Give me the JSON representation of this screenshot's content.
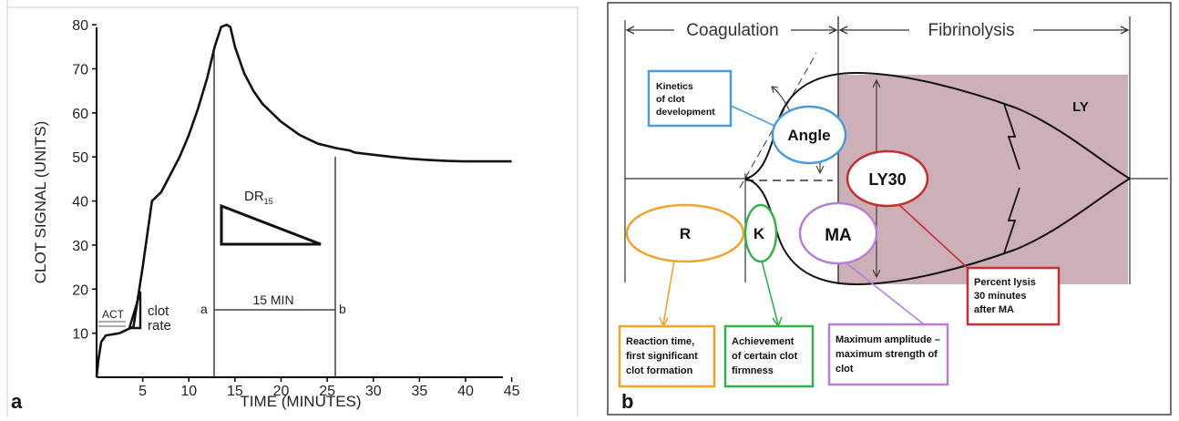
{
  "panel_a": {
    "letter": "a",
    "ylabel": "CLOT SIGNAL (UNITS)",
    "xlabel": "TIME (MINUTES)",
    "annotations": {
      "act": "ACT",
      "clot": "clot",
      "rate": "rate",
      "dr": "DR",
      "dr_sub": "15",
      "marker_a": "a",
      "marker_b": "b",
      "interval": "15 MIN"
    }
  },
  "panel_b": {
    "letter": "b",
    "phase_coagulation": "Coagulation",
    "phase_fibrinolysis": "Fibrinolysis",
    "labels": {
      "r": "R",
      "k": "K",
      "angle": "Angle",
      "ma": "MA",
      "ly30": "LY30",
      "ly": "LY"
    },
    "boxes": {
      "kinetics": [
        "Kinetics",
        "of clot",
        "development"
      ],
      "reaction": [
        "Reaction time,",
        "first significant",
        "clot formation"
      ],
      "achievement": [
        "Achievement",
        "of certain clot",
        "firmness"
      ],
      "max_amp": [
        "Maximum amplitude –",
        "maximum strength of",
        "clot"
      ],
      "percent_lysis": [
        "Percent lysis",
        "30 minutes",
        "after MA"
      ]
    },
    "colors": {
      "orange": "#f2a32e",
      "green": "#35b04a",
      "blue": "#4a9bd8",
      "purple": "#b77ed8",
      "red": "#c62f2f",
      "shade": "#cdb0b7"
    }
  },
  "chart_data": [
    {
      "type": "line",
      "title": "",
      "xlabel": "TIME (MINUTES)",
      "ylabel": "CLOT SIGNAL (UNITS)",
      "xlim": [
        0,
        48
      ],
      "ylim": [
        0,
        85
      ],
      "x_ticks": [
        5,
        10,
        15,
        20,
        25,
        30,
        35,
        40,
        45
      ],
      "y_ticks": [
        10,
        20,
        30,
        40,
        50,
        60,
        70,
        80
      ],
      "grid": false,
      "series": [
        {
          "x": [
            0,
            0.2,
            0.5,
            1,
            2.5,
            4,
            5,
            6,
            7,
            8,
            9,
            10,
            11,
            12,
            12.8,
            13.5,
            14.1,
            14.5,
            15,
            16,
            17,
            18,
            19,
            20,
            21,
            22,
            23,
            24,
            25,
            26,
            27.4,
            28,
            30,
            32,
            34,
            36,
            38,
            40,
            42,
            43,
            45
          ],
          "y": [
            0,
            4,
            8,
            9.5,
            10,
            11.5,
            25,
            40,
            42,
            46,
            50,
            55,
            61,
            68,
            75,
            79.5,
            80,
            79.5,
            75,
            69,
            65,
            62,
            60,
            58,
            56.5,
            55,
            54,
            53,
            52.5,
            52,
            51.5,
            51,
            50.5,
            50,
            49.6,
            49.3,
            49.1,
            49,
            49,
            49,
            49
          ]
        }
      ]
    },
    {
      "type": "diagram",
      "title": ""
    }
  ]
}
